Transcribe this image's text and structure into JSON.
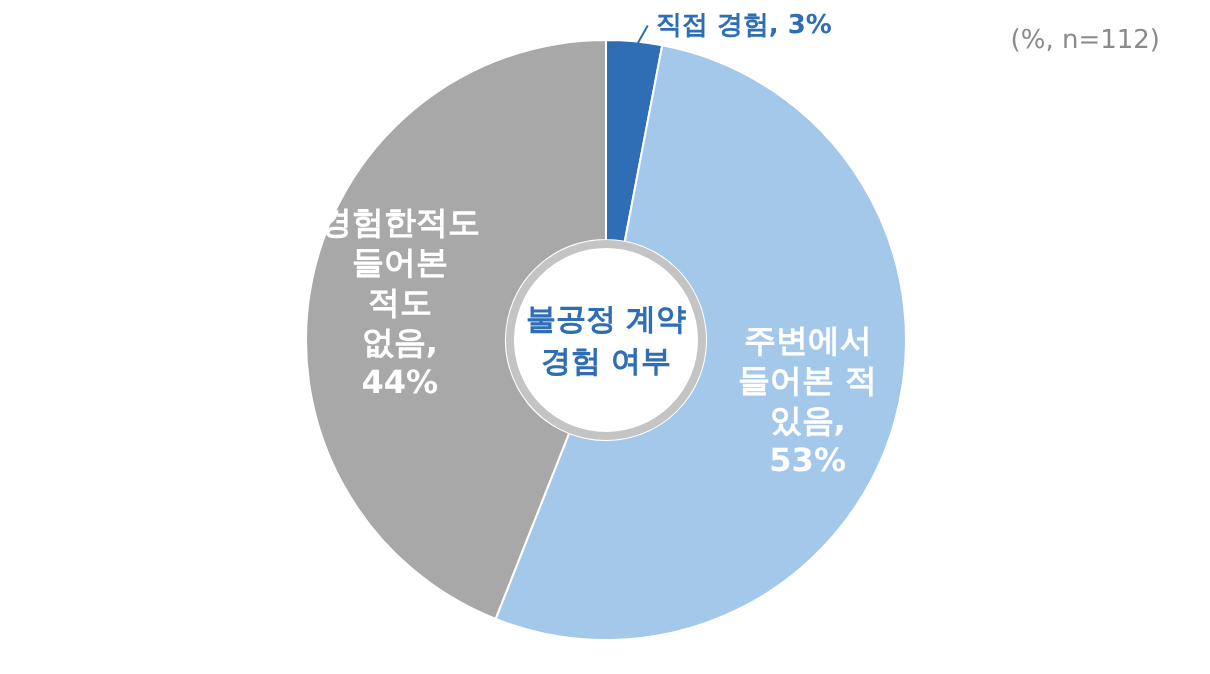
{
  "chart_data": {
    "type": "donut",
    "title": "불공정 계약 경험 여부",
    "categories": [
      "직접 경험",
      "주변에서 들어본 적 있음",
      "경험한적도 들어본 적도 없음"
    ],
    "values": [
      3,
      53,
      44
    ],
    "value_labels": [
      ", 3%",
      ", 53%",
      ", 44%"
    ],
    "colors": [
      "#2f6eb5",
      "#a4c8ea",
      "#a8a8a8"
    ],
    "annotations": [
      "(%, n=112)"
    ],
    "legend": false
  }
}
